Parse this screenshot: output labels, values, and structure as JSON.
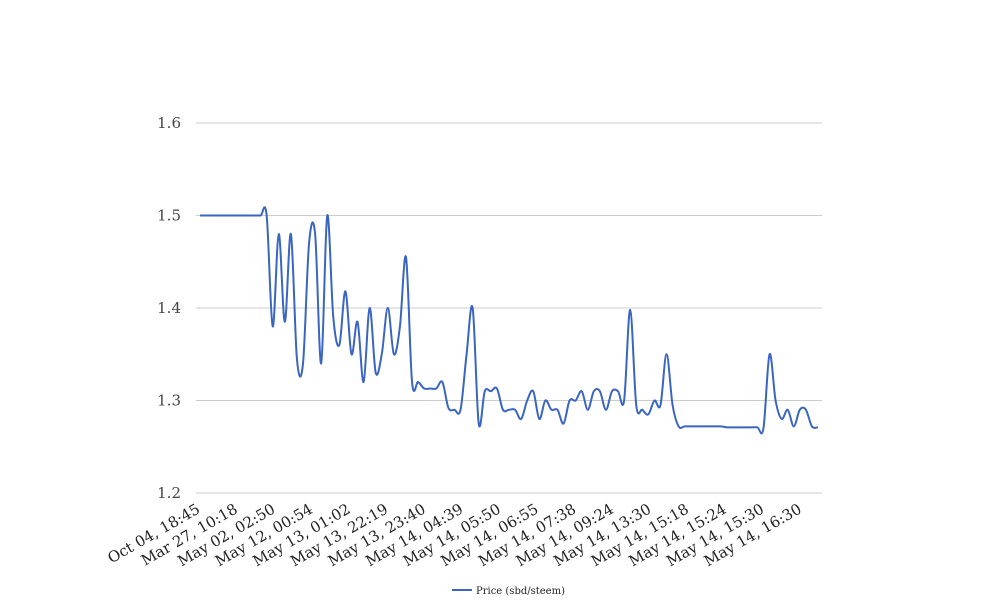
{
  "chart_data": {
    "type": "line",
    "title": "",
    "xlabel": "",
    "ylabel": "",
    "ylim": [
      1.2,
      1.6
    ],
    "yticks": [
      "1.2",
      "1.3",
      "1.4",
      "1.5",
      "1.6"
    ],
    "grid": true,
    "legend_position": "bottom",
    "x_tick_labels": [
      "Oct 04, 18:45",
      "Mar 27, 10:18",
      "May 02, 02:50",
      "May 12, 00:54",
      "May 13, 01:02",
      "May 13, 22:19",
      "May 13, 23:40",
      "May 14, 04:39",
      "May 14, 05:50",
      "May 14, 06:55",
      "May 14, 07:38",
      "May 14, 09:24",
      "May 14, 13:30",
      "May 14, 15:18",
      "May 14, 15:24",
      "May 14, 15:30",
      "May 14, 16:30"
    ],
    "series": [
      {
        "name": "Price (sbd/steem)",
        "color": "#3a65c0",
        "values": [
          1.5,
          1.5,
          1.5,
          1.5,
          1.5,
          1.5,
          1.5,
          1.5,
          1.5,
          1.5,
          1.5,
          1.5,
          1.38,
          1.48,
          1.385,
          1.48,
          1.345,
          1.34,
          1.47,
          1.48,
          1.34,
          1.5,
          1.39,
          1.36,
          1.418,
          1.35,
          1.385,
          1.32,
          1.4,
          1.33,
          1.35,
          1.4,
          1.35,
          1.38,
          1.455,
          1.32,
          1.32,
          1.313,
          1.313,
          1.313,
          1.32,
          1.292,
          1.29,
          1.29,
          1.35,
          1.4,
          1.275,
          1.31,
          1.31,
          1.313,
          1.29,
          1.29,
          1.29,
          1.28,
          1.3,
          1.31,
          1.28,
          1.3,
          1.29,
          1.29,
          1.275,
          1.3,
          1.3,
          1.31,
          1.29,
          1.31,
          1.31,
          1.29,
          1.31,
          1.31,
          1.3,
          1.398,
          1.295,
          1.29,
          1.285,
          1.3,
          1.295,
          1.35,
          1.295,
          1.272,
          1.272,
          1.272,
          1.272,
          1.272,
          1.272,
          1.272,
          1.272,
          1.271,
          1.271,
          1.271,
          1.271,
          1.271,
          1.271,
          1.27,
          1.35,
          1.3,
          1.28,
          1.29,
          1.272,
          1.29,
          1.29,
          1.272,
          1.271
        ]
      }
    ]
  }
}
